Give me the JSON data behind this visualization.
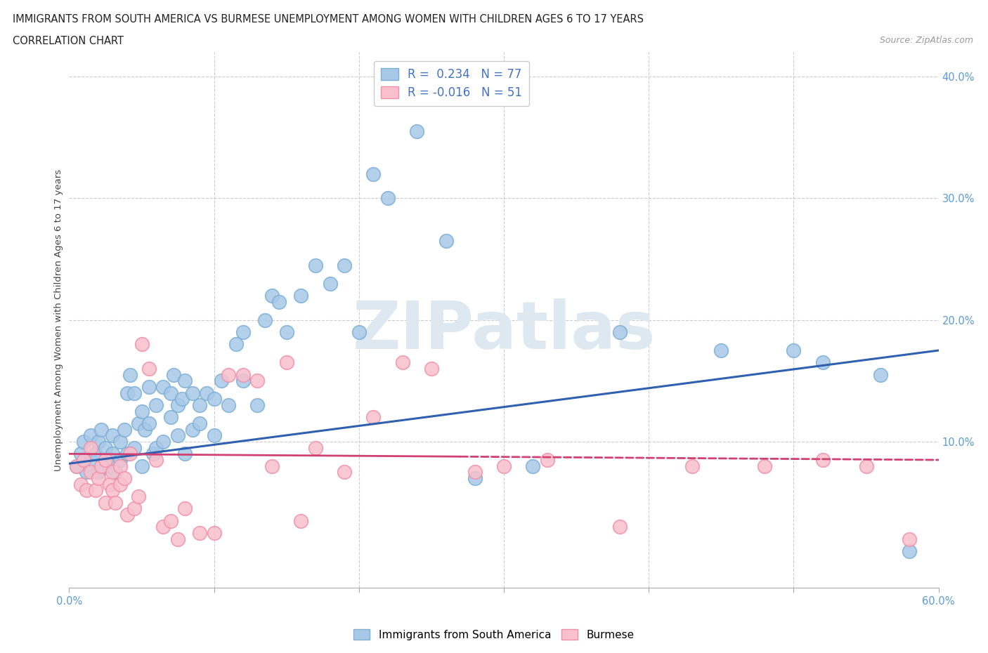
{
  "title_line1": "IMMIGRANTS FROM SOUTH AMERICA VS BURMESE UNEMPLOYMENT AMONG WOMEN WITH CHILDREN AGES 6 TO 17 YEARS",
  "title_line2": "CORRELATION CHART",
  "source": "Source: ZipAtlas.com",
  "ylabel": "Unemployment Among Women with Children Ages 6 to 17 years",
  "xlim": [
    0.0,
    0.6
  ],
  "ylim": [
    -0.02,
    0.42
  ],
  "xticks": [
    0.0,
    0.1,
    0.2,
    0.3,
    0.4,
    0.5,
    0.6
  ],
  "xticklabels": [
    "0.0%",
    "",
    "",
    "",
    "",
    "",
    "60.0%"
  ],
  "yticks": [
    0.0,
    0.1,
    0.2,
    0.3,
    0.4
  ],
  "yticklabels": [
    "",
    "10.0%",
    "20.0%",
    "30.0%",
    "40.0%"
  ],
  "blue_R": 0.234,
  "blue_N": 77,
  "pink_R": -0.016,
  "pink_N": 51,
  "blue_color": "#a8c8e8",
  "blue_edge_color": "#7bafd4",
  "pink_color": "#f8c0cc",
  "pink_edge_color": "#f090a8",
  "blue_line_color": "#3060b0",
  "pink_line_color": "#d04070",
  "watermark_color": "#dde8f0",
  "blue_scatter_x": [
    0.005,
    0.008,
    0.01,
    0.012,
    0.015,
    0.015,
    0.018,
    0.02,
    0.02,
    0.022,
    0.025,
    0.025,
    0.028,
    0.03,
    0.03,
    0.032,
    0.035,
    0.035,
    0.038,
    0.04,
    0.04,
    0.042,
    0.045,
    0.045,
    0.048,
    0.05,
    0.05,
    0.052,
    0.055,
    0.055,
    0.058,
    0.06,
    0.06,
    0.065,
    0.065,
    0.07,
    0.07,
    0.072,
    0.075,
    0.075,
    0.078,
    0.08,
    0.08,
    0.085,
    0.085,
    0.09,
    0.09,
    0.095,
    0.1,
    0.1,
    0.105,
    0.11,
    0.115,
    0.12,
    0.12,
    0.13,
    0.135,
    0.14,
    0.145,
    0.15,
    0.16,
    0.17,
    0.18,
    0.19,
    0.2,
    0.21,
    0.22,
    0.24,
    0.26,
    0.28,
    0.32,
    0.38,
    0.45,
    0.5,
    0.52,
    0.56,
    0.58
  ],
  "blue_scatter_y": [
    0.08,
    0.09,
    0.1,
    0.075,
    0.085,
    0.105,
    0.09,
    0.075,
    0.1,
    0.11,
    0.085,
    0.095,
    0.08,
    0.09,
    0.105,
    0.075,
    0.1,
    0.085,
    0.11,
    0.09,
    0.14,
    0.155,
    0.14,
    0.095,
    0.115,
    0.125,
    0.08,
    0.11,
    0.145,
    0.115,
    0.09,
    0.13,
    0.095,
    0.145,
    0.1,
    0.14,
    0.12,
    0.155,
    0.13,
    0.105,
    0.135,
    0.15,
    0.09,
    0.14,
    0.11,
    0.13,
    0.115,
    0.14,
    0.135,
    0.105,
    0.15,
    0.13,
    0.18,
    0.19,
    0.15,
    0.13,
    0.2,
    0.22,
    0.215,
    0.19,
    0.22,
    0.245,
    0.23,
    0.245,
    0.19,
    0.32,
    0.3,
    0.355,
    0.265,
    0.07,
    0.08,
    0.19,
    0.175,
    0.175,
    0.165,
    0.155,
    0.01
  ],
  "pink_scatter_x": [
    0.005,
    0.008,
    0.01,
    0.012,
    0.015,
    0.015,
    0.018,
    0.02,
    0.022,
    0.025,
    0.025,
    0.028,
    0.03,
    0.03,
    0.032,
    0.035,
    0.035,
    0.038,
    0.04,
    0.042,
    0.045,
    0.048,
    0.05,
    0.055,
    0.06,
    0.065,
    0.07,
    0.075,
    0.08,
    0.09,
    0.1,
    0.11,
    0.12,
    0.13,
    0.14,
    0.15,
    0.16,
    0.17,
    0.19,
    0.21,
    0.23,
    0.25,
    0.28,
    0.3,
    0.33,
    0.38,
    0.43,
    0.48,
    0.52,
    0.55,
    0.58
  ],
  "pink_scatter_y": [
    0.08,
    0.065,
    0.085,
    0.06,
    0.075,
    0.095,
    0.06,
    0.07,
    0.08,
    0.05,
    0.085,
    0.065,
    0.06,
    0.075,
    0.05,
    0.08,
    0.065,
    0.07,
    0.04,
    0.09,
    0.045,
    0.055,
    0.18,
    0.16,
    0.085,
    0.03,
    0.035,
    0.02,
    0.045,
    0.025,
    0.025,
    0.155,
    0.155,
    0.15,
    0.08,
    0.165,
    0.035,
    0.095,
    0.075,
    0.12,
    0.165,
    0.16,
    0.075,
    0.08,
    0.085,
    0.03,
    0.08,
    0.08,
    0.085,
    0.08,
    0.02
  ]
}
